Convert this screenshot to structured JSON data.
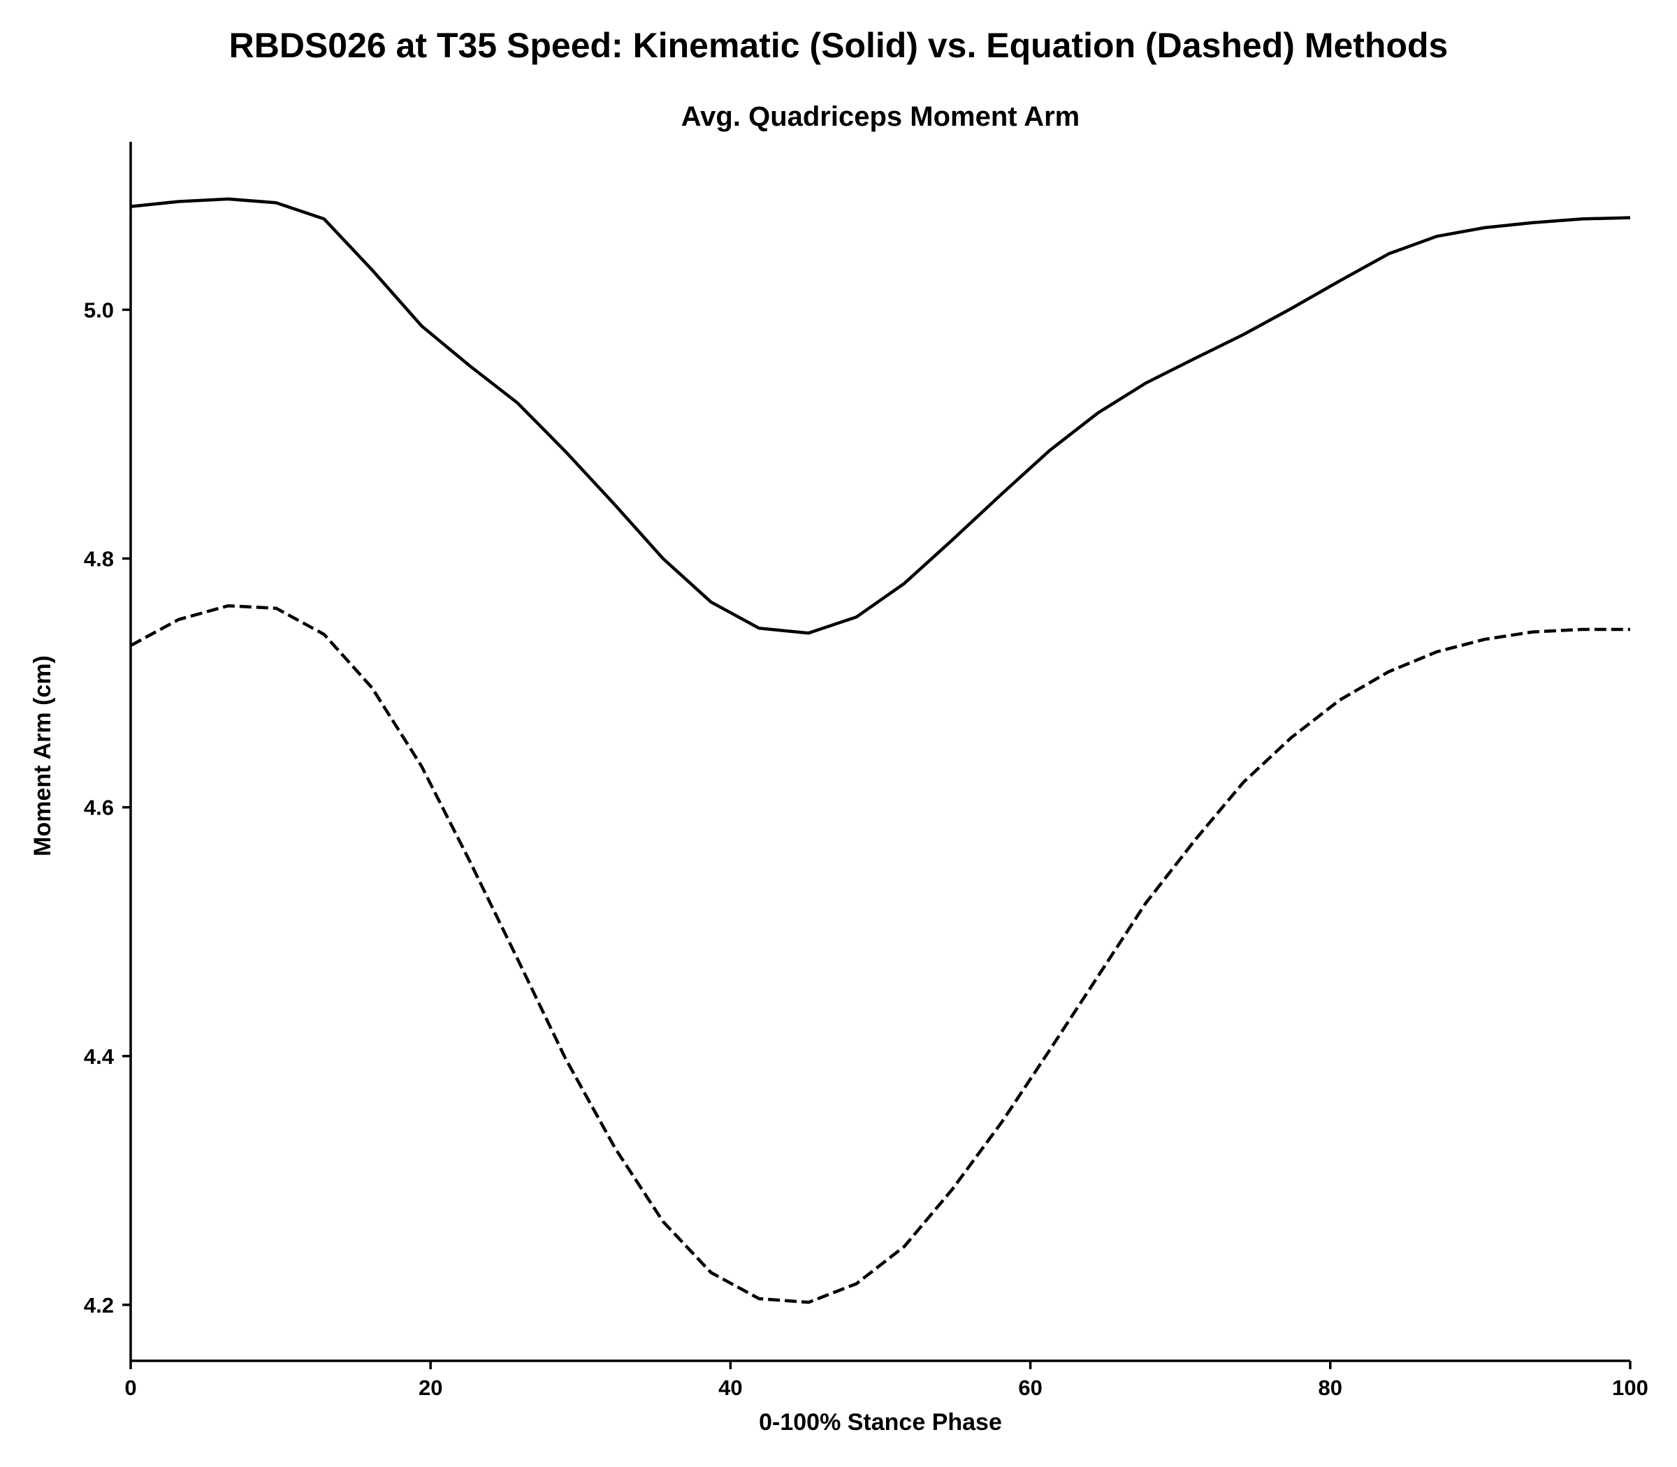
{
  "figure": {
    "title": "RBDS026 at T35 Speed: Kinematic (Solid) vs. Equation (Dashed) Methods"
  },
  "chart_data": {
    "type": "line",
    "title": "Avg. Quadriceps Moment Arm",
    "xlabel": "0-100% Stance Phase",
    "ylabel": "Moment Arm (cm)",
    "xlim": [
      0,
      100
    ],
    "ylim": [
      4.155,
      5.135
    ],
    "xticks": [
      0,
      20,
      40,
      60,
      80,
      100
    ],
    "yticks": [
      4.2,
      4.4,
      4.6,
      4.8,
      5.0
    ],
    "xtick_labels": [
      "0",
      "20",
      "40",
      "60",
      "80",
      "100"
    ],
    "ytick_labels": [
      "4.2",
      "4.4",
      "4.6",
      "4.8",
      "5.0"
    ],
    "grid": false,
    "legend": "none",
    "series": [
      {
        "style": "solid",
        "color": "#000000",
        "x": [
          0,
          3.2,
          6.5,
          9.7,
          12.9,
          16.1,
          19.4,
          22.6,
          25.8,
          29.0,
          32.3,
          35.5,
          38.7,
          41.9,
          45.2,
          48.4,
          51.6,
          54.8,
          58.1,
          61.3,
          64.5,
          67.7,
          71.0,
          74.2,
          77.4,
          80.6,
          83.9,
          87.1,
          90.3,
          93.5,
          96.8,
          100
        ],
        "y": [
          5.083,
          5.087,
          5.089,
          5.086,
          5.073,
          5.032,
          4.987,
          4.955,
          4.925,
          4.886,
          4.843,
          4.8,
          4.765,
          4.744,
          4.74,
          4.753,
          4.78,
          4.815,
          4.852,
          4.887,
          4.917,
          4.941,
          4.961,
          4.98,
          5.001,
          5.023,
          5.045,
          5.059,
          5.066,
          5.07,
          5.073,
          5.074
        ]
      },
      {
        "style": "dashed",
        "color": "#000000",
        "x": [
          0,
          3.2,
          6.5,
          9.7,
          12.9,
          16.1,
          19.4,
          22.6,
          25.8,
          29.0,
          32.3,
          35.5,
          38.7,
          41.9,
          45.2,
          48.4,
          51.6,
          54.8,
          58.1,
          61.3,
          64.5,
          67.7,
          71.0,
          74.2,
          77.4,
          80.6,
          83.9,
          87.1,
          90.3,
          93.5,
          96.8,
          100
        ],
        "y": [
          4.73,
          4.751,
          4.762,
          4.76,
          4.739,
          4.696,
          4.633,
          4.557,
          4.478,
          4.398,
          4.326,
          4.267,
          4.226,
          4.205,
          4.202,
          4.217,
          4.247,
          4.293,
          4.347,
          4.405,
          4.464,
          4.523,
          4.574,
          4.62,
          4.656,
          4.686,
          4.709,
          4.725,
          4.735,
          4.741,
          4.743,
          4.743
        ]
      }
    ]
  }
}
